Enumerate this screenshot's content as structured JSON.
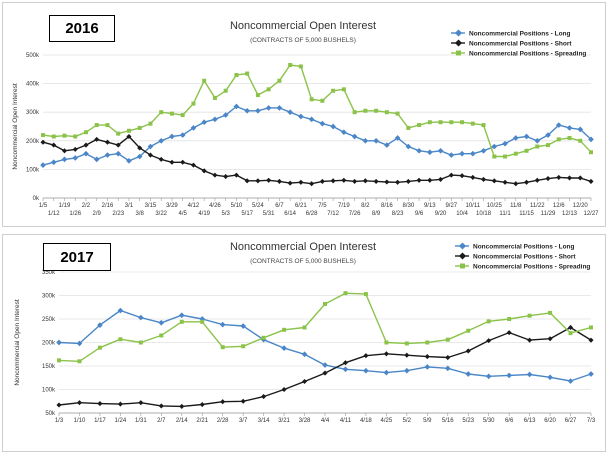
{
  "chart_data": [
    {
      "type": "line",
      "badge": "2016",
      "title": "Noncommercial Open Interest",
      "subtitle": "(CONTRACTS OF 5,000 BUSHELS)",
      "ylabel": "Noncommercial Open Interest",
      "ylim": [
        0,
        500000
      ],
      "yticks": [
        "0k",
        "100k",
        "200k",
        "300k",
        "400k",
        "500k"
      ],
      "categories": [
        "1/5",
        "1/12",
        "1/19",
        "1/26",
        "2/2",
        "2/9",
        "2/16",
        "2/23",
        "3/1",
        "3/8",
        "3/15",
        "3/22",
        "3/29",
        "4/5",
        "4/12",
        "4/19",
        "4/26",
        "5/3",
        "5/10",
        "5/17",
        "5/24",
        "5/31",
        "6/7",
        "6/14",
        "6/21",
        "6/28",
        "7/5",
        "7/12",
        "7/19",
        "7/26",
        "8/2",
        "8/9",
        "8/16",
        "8/23",
        "8/30",
        "9/6",
        "9/13",
        "9/20",
        "9/27",
        "10/4",
        "10/11",
        "10/18",
        "10/25",
        "11/1",
        "11/8",
        "11/15",
        "11/22",
        "11/29",
        "12/6",
        "12/13",
        "12/20",
        "12/27"
      ],
      "series": [
        {
          "name": "Noncommercial Positions - Long",
          "color": "#4a86c8",
          "values": [
            115000,
            125000,
            135000,
            140000,
            155000,
            135000,
            150000,
            155000,
            130000,
            145000,
            180000,
            200000,
            215000,
            220000,
            245000,
            265000,
            275000,
            290000,
            320000,
            305000,
            305000,
            315000,
            315000,
            300000,
            285000,
            275000,
            260000,
            250000,
            230000,
            215000,
            200000,
            200000,
            185000,
            210000,
            180000,
            165000,
            160000,
            165000,
            150000,
            155000,
            155000,
            165000,
            180000,
            190000,
            210000,
            215000,
            200000,
            220000,
            255000,
            245000,
            240000,
            205000
          ]
        },
        {
          "name": "Noncommercial Positions - Short",
          "color": "#1a1a1a",
          "values": [
            195000,
            185000,
            165000,
            170000,
            185000,
            205000,
            195000,
            185000,
            215000,
            175000,
            150000,
            135000,
            125000,
            125000,
            115000,
            95000,
            80000,
            75000,
            80000,
            60000,
            60000,
            62000,
            58000,
            52000,
            55000,
            50000,
            58000,
            60000,
            62000,
            58000,
            60000,
            58000,
            56000,
            55000,
            58000,
            62000,
            62000,
            65000,
            80000,
            78000,
            72000,
            65000,
            60000,
            55000,
            50000,
            55000,
            62000,
            68000,
            72000,
            70000,
            70000,
            58000
          ]
        },
        {
          "name": "Noncommercial Positions - Spreading",
          "color": "#8bc34a",
          "values": [
            220000,
            215000,
            218000,
            215000,
            230000,
            255000,
            255000,
            225000,
            235000,
            245000,
            260000,
            300000,
            295000,
            290000,
            330000,
            410000,
            350000,
            375000,
            430000,
            435000,
            360000,
            380000,
            410000,
            465000,
            460000,
            345000,
            340000,
            375000,
            380000,
            300000,
            305000,
            305000,
            300000,
            295000,
            245000,
            255000,
            265000,
            265000,
            265000,
            265000,
            260000,
            255000,
            145000,
            145000,
            155000,
            165000,
            180000,
            185000,
            205000,
            210000,
            200000,
            160000
          ]
        }
      ]
    },
    {
      "type": "line",
      "badge": "2017",
      "title": "Noncommercial Open Interest",
      "subtitle": "(CONTRACTS OF 5,000 BUSHELS)",
      "ylabel": "Noncommercial Open Interest",
      "ylim": [
        50000,
        350000
      ],
      "yticks": [
        "50k",
        "100k",
        "150k",
        "200k",
        "250k",
        "300k",
        "350k"
      ],
      "categories": [
        "1/3",
        "1/10",
        "1/17",
        "1/24",
        "1/31",
        "2/7",
        "2/14",
        "2/21",
        "2/28",
        "3/7",
        "3/14",
        "3/21",
        "3/28",
        "4/4",
        "4/11",
        "4/18",
        "4/25",
        "5/2",
        "5/9",
        "5/16",
        "5/23",
        "5/30",
        "6/6",
        "6/13",
        "6/20",
        "6/27",
        "7/3"
      ],
      "series": [
        {
          "name": "Noncommercial Positions - Long",
          "color": "#4a86c8",
          "values": [
            200000,
            198000,
            237000,
            268000,
            253000,
            242000,
            258000,
            250000,
            238000,
            235000,
            206000,
            188000,
            175000,
            152000,
            143000,
            140000,
            136000,
            140000,
            148000,
            145000,
            133000,
            128000,
            130000,
            132000,
            126000,
            118000,
            133000
          ]
        },
        {
          "name": "Noncommercial Positions - Short",
          "color": "#1a1a1a",
          "values": [
            67000,
            72000,
            70000,
            69000,
            72000,
            65000,
            64000,
            68000,
            74000,
            75000,
            85000,
            100000,
            117000,
            135000,
            157000,
            172000,
            176000,
            173000,
            170000,
            168000,
            182000,
            204000,
            221000,
            205000,
            208000,
            232000,
            205000
          ]
        },
        {
          "name": "Noncommercial Positions - Spreading",
          "color": "#8bc34a",
          "values": [
            162000,
            160000,
            189000,
            207000,
            200000,
            215000,
            244000,
            244000,
            190000,
            192000,
            210000,
            227000,
            232000,
            282000,
            305000,
            303000,
            200000,
            198000,
            200000,
            206000,
            225000,
            245000,
            250000,
            257000,
            263000,
            220000,
            232000
          ]
        }
      ]
    }
  ]
}
